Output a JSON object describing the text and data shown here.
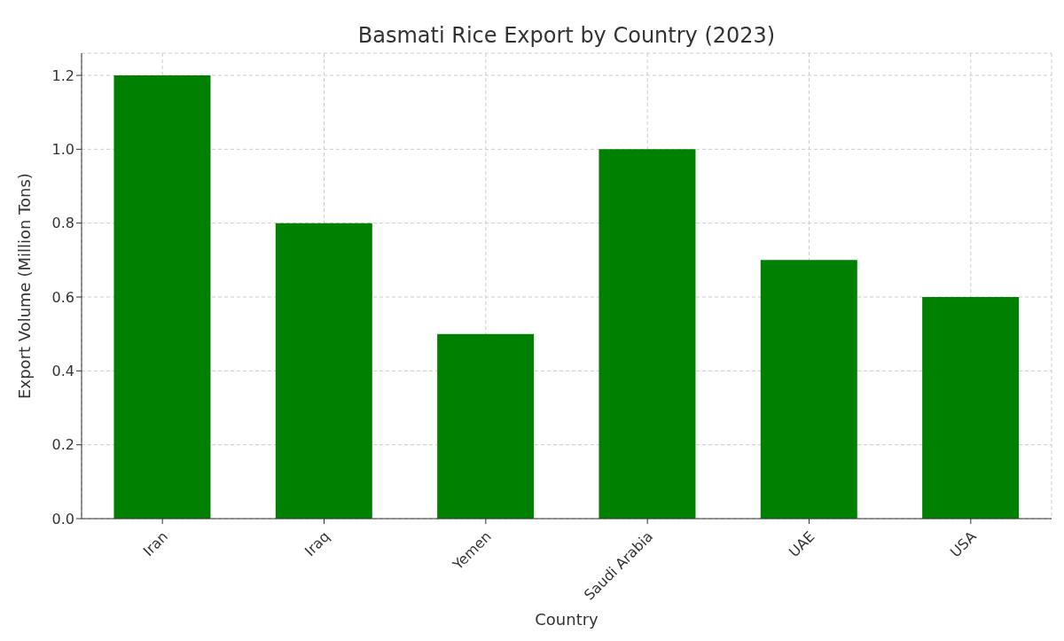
{
  "chart_data": {
    "type": "bar",
    "title": "Basmati Rice Export by Country (2023)",
    "xlabel": "Country",
    "ylabel": "Export Volume (Million Tons)",
    "categories": [
      "Iran",
      "Iraq",
      "Yemen",
      "Saudi Arabia",
      "UAE",
      "USA"
    ],
    "values": [
      1.2,
      0.8,
      0.5,
      1.0,
      0.7,
      0.6
    ],
    "color": "#008000",
    "ylim": [
      0,
      1.26
    ],
    "yticks": [
      {
        "value": 0,
        "label": "0.0"
      },
      0.2,
      0.4,
      0.6,
      0.8,
      {
        "value": 1,
        "label": "1.0"
      },
      1.2
    ],
    "grid": true
  }
}
